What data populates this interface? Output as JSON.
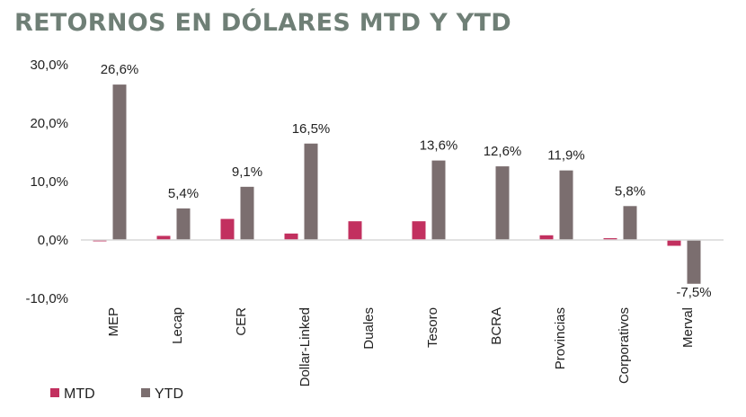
{
  "title": "RETORNOS EN DÓLARES MTD Y YTD",
  "colors": {
    "mtd": "#c2305f",
    "ytd": "#7b6e6f",
    "axis": "#d9d9d9"
  },
  "chart_data": {
    "type": "bar",
    "title": "RETORNOS EN DÓLARES MTD Y YTD",
    "categories": [
      "MEP",
      "Lecap",
      "CER",
      "Dollar-Linked",
      "Duales",
      "Tesoro",
      "BCRA",
      "Provincias",
      "Corporativos",
      "Merval"
    ],
    "series": [
      {
        "name": "MTD",
        "values": [
          -0.2,
          0.7,
          3.6,
          1.1,
          3.2,
          3.2,
          0.0,
          0.8,
          0.3,
          -1.0
        ]
      },
      {
        "name": "YTD",
        "values": [
          26.6,
          5.4,
          9.1,
          16.5,
          0.0,
          13.6,
          12.6,
          11.9,
          5.8,
          -7.5
        ]
      }
    ],
    "data_labels": [
      "26,6%",
      "5,4%",
      "9,1%",
      "16,5%",
      "",
      "13,6%",
      "12,6%",
      "11,9%",
      "5,8%",
      "-7,5%"
    ],
    "y_ticks": [
      -10,
      0,
      10,
      20,
      30
    ],
    "y_tick_labels": [
      "-10,0%",
      "0,0%",
      "10,0%",
      "20,0%",
      "30,0%"
    ],
    "ylim": [
      -10,
      30
    ],
    "grid": false,
    "legend": [
      "MTD",
      "YTD"
    ],
    "legend_position": "bottom-left"
  }
}
